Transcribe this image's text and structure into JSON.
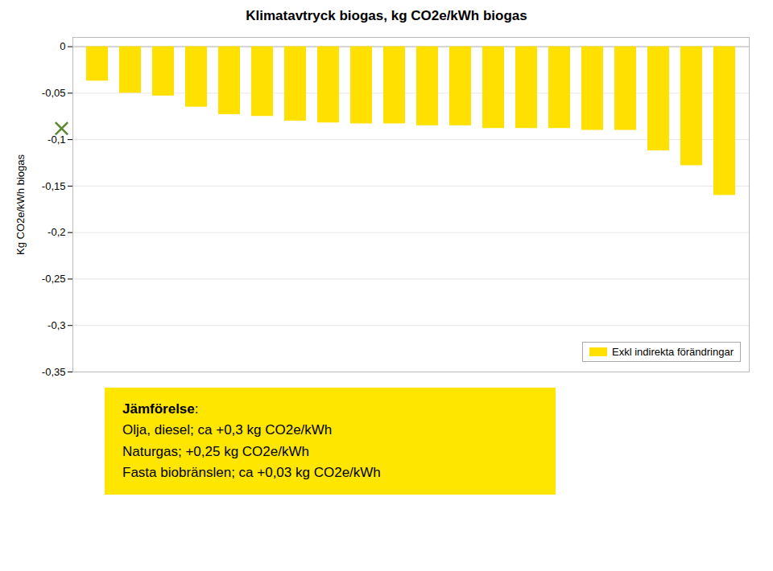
{
  "chart_data": {
    "type": "bar",
    "title": "Klimatavtryck biogas, kg CO2e/kWh biogas",
    "ylabel": "Kg CO2e/kWh biogas",
    "categories": [
      null,
      null,
      null,
      null,
      null,
      null,
      null,
      null,
      null,
      null,
      null,
      null,
      null,
      null,
      null,
      null,
      null,
      null,
      null,
      null
    ],
    "series": [
      {
        "name": "Exkl indirekta förändringar",
        "color": "#FFE000",
        "values": [
          -0.037,
          -0.05,
          -0.053,
          -0.065,
          -0.073,
          -0.075,
          -0.08,
          -0.082,
          -0.083,
          -0.083,
          -0.085,
          -0.085,
          -0.088,
          -0.088,
          -0.088,
          -0.09,
          -0.09,
          -0.112,
          -0.128,
          -0.16
        ]
      }
    ],
    "ylim": [
      -0.35,
      0.01
    ],
    "yticks": [
      0,
      {
        "value": -0.05,
        "label": "-0,05"
      },
      {
        "value": -0.1,
        "label": "-0,1"
      },
      {
        "value": -0.15,
        "label": "-0,15"
      },
      {
        "value": -0.2,
        "label": "-0,2"
      },
      {
        "value": -0.25,
        "label": "-0,25"
      },
      {
        "value": -0.3,
        "label": "-0,3"
      },
      {
        "value": -0.35,
        "label": "-0,35"
      }
    ],
    "grid": true,
    "legend": "lower right",
    "tick_labels": "y",
    "marker_point": {
      "y": -0.088,
      "marker": "x",
      "color": "#5B8731"
    },
    "annotation": {
      "title": "Jämförelse",
      "title_suffix": ":",
      "lines": [
        "Olja, diesel; ca +0,3 kg CO2e/kWh",
        "Naturgas; +0,25 kg CO2e/kWh",
        "Fasta biobränslen; ca +0,03 kg CO2e/kWh"
      ],
      "color": "#FFE600"
    }
  }
}
